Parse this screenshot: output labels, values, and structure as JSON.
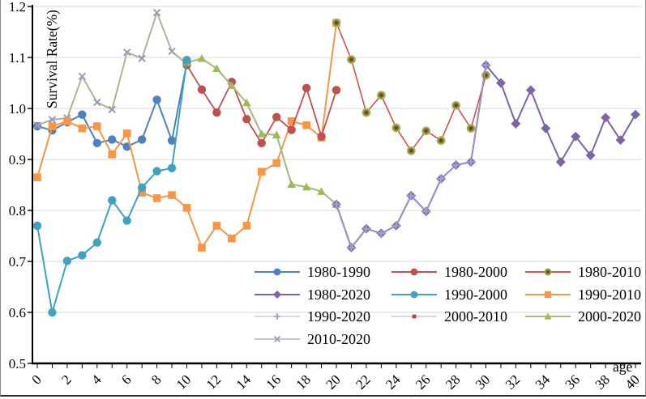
{
  "chart_data": {
    "type": "line",
    "title": "",
    "xlabel": "age",
    "ylabel": "Survival Rate(%)",
    "xlim": [
      0,
      40
    ],
    "ylim": [
      0.5,
      1.2
    ],
    "grid": "horizontal",
    "legend_position": "bottom-center, 3 columns, transparent",
    "x_tick_step_labels": 2,
    "x_tick_step_minor": 1,
    "x_tick_labels": [
      "0",
      "2",
      "4",
      "6",
      "8",
      "10",
      "12",
      "14",
      "16",
      "18",
      "20",
      "22",
      "24",
      "26",
      "28",
      "30",
      "32",
      "34",
      "36",
      "38",
      "40"
    ],
    "y_tick_labels": [
      "0.5",
      "0.6",
      "0.7",
      "0.8",
      "0.9",
      "1.0",
      "1.1",
      "1.2"
    ],
    "series": [
      {
        "name": "1980-1990",
        "marker": "circle",
        "color": "#4F81BD",
        "line_color": "#4F81BD",
        "line_width": 2,
        "start_age": 0,
        "values": [
          0.965,
          0.957,
          0.973,
          0.988,
          0.932,
          0.939,
          0.925,
          0.939,
          1.017,
          0.937,
          1.09
        ]
      },
      {
        "name": "1980-2000",
        "marker": "circle",
        "color": "#C0504D",
        "line_color": "#C0504D",
        "line_width": 1.8,
        "start_age": 10,
        "values": [
          1.085,
          1.037,
          0.992,
          1.052,
          0.979,
          0.932,
          0.983,
          0.958,
          1.04,
          0.945,
          1.036
        ]
      },
      {
        "name": "1980-2010",
        "marker": "circle-dot",
        "color": "#867B31",
        "line_color": "#D2544A",
        "line_width": 1.6,
        "start_age": 20,
        "values": [
          1.168,
          1.096,
          0.992,
          1.026,
          0.962,
          0.917,
          0.956,
          0.937,
          1.006,
          0.961,
          1.065
        ]
      },
      {
        "name": "1980-2020",
        "marker": "diamond",
        "color": "#7E64A5",
        "line_color": "#7E64A5",
        "line_width": 2,
        "start_age": 20,
        "values": [
          0.812,
          0.727,
          0.764,
          0.755,
          0.77,
          0.829,
          0.798,
          0.862,
          0.889,
          0.895,
          1.085,
          1.05,
          0.97,
          1.036,
          0.961,
          0.895,
          0.945,
          0.908,
          0.982,
          0.938,
          0.988
        ]
      },
      {
        "name": "1990-2000",
        "marker": "circle",
        "color": "#3DA3BF",
        "line_color": "#3DA3BF",
        "line_width": 2,
        "start_age": 0,
        "values": [
          0.77,
          0.6,
          0.701,
          0.712,
          0.737,
          0.82,
          0.78,
          0.845,
          0.877,
          0.883,
          1.095
        ]
      },
      {
        "name": "1990-2010",
        "marker": "square",
        "color": "#F79646",
        "line_color": "#F79646",
        "line_width": 2,
        "start_age": 0,
        "values": [
          0.865,
          0.965,
          0.975,
          0.961,
          0.965,
          0.91,
          0.951,
          0.835,
          0.824,
          0.83,
          0.805,
          0.727,
          0.77,
          0.745,
          0.77,
          0.876,
          0.893,
          0.975,
          0.967,
          0.943,
          1.168
        ]
      },
      {
        "name": "1990-2020",
        "marker": "plus",
        "color": "#98A2D2",
        "line_color": "#D9D9D9",
        "legend_line": "#D9D9D9",
        "line_width": 1,
        "line_opacity": 0.55,
        "start_age": 20,
        "values": [
          0.812,
          0.727,
          0.764,
          0.755,
          0.77,
          0.829,
          0.798,
          0.862,
          0.889,
          0.895,
          1.085
        ]
      },
      {
        "name": "2000-2010",
        "marker": "small-square",
        "color": "#A8473E",
        "line_color": "#E89A6B",
        "legend_line": "#D9D9D9",
        "line_width": 1,
        "line_opacity": 0.0,
        "start_age": 0,
        "values": [
          0.865,
          0.965,
          0.975,
          0.961,
          0.965,
          0.91,
          0.951,
          0.835,
          0.824,
          0.83,
          0.805
        ]
      },
      {
        "name": "2000-2020",
        "marker": "triangle",
        "color": "#9BBB59",
        "line_color": "#A9BC84",
        "line_width": 2.2,
        "start_age": 10,
        "values": [
          1.09,
          1.098,
          1.078,
          1.045,
          1.011,
          0.95,
          0.948,
          0.851,
          0.846,
          0.837,
          0.812
        ]
      },
      {
        "name": "2010-2020",
        "marker": "x",
        "color": "#9C99B5",
        "line_color": "#B3B096",
        "legend_line": "#C6C6C6",
        "line_width": 2,
        "start_age": 0,
        "values": [
          0.967,
          0.978,
          0.981,
          1.063,
          1.012,
          0.998,
          1.11,
          1.098,
          1.188,
          1.112,
          1.087
        ]
      }
    ],
    "draw_order": [
      "2000-2010",
      "1980-1990",
      "2010-2020",
      "1990-2010",
      "1980-2000",
      "2000-2020",
      "1990-2000",
      "1980-2010",
      "1980-2020",
      "1990-2020"
    ],
    "notes": "2000-2010 is fully hidden beneath 1990-2010 (ages 0-10); 1990-2020 plus markers sit on top of 1980-2020 diamonds (ages 20-30)."
  }
}
